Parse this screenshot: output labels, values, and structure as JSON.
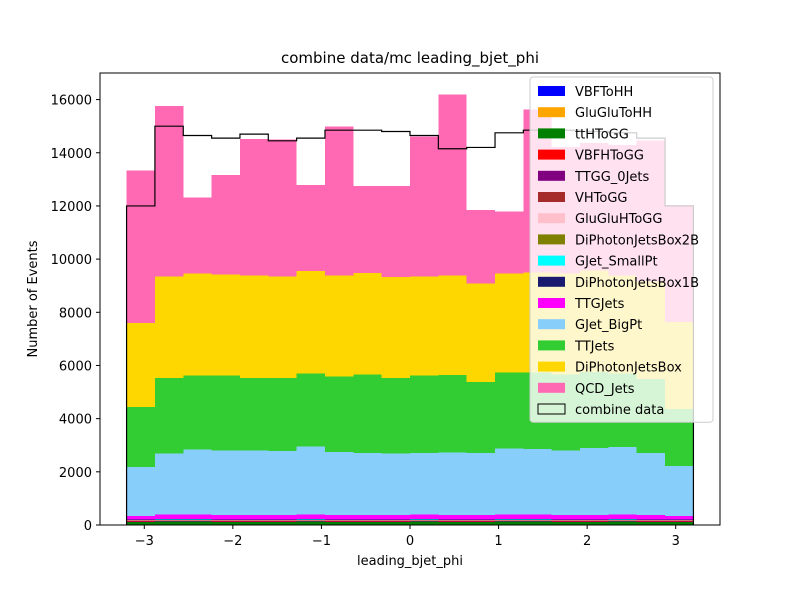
{
  "chart_data": {
    "type": "bar",
    "title": "combine data/mc leading_bjet_phi",
    "xlabel": "leading_bjet_phi",
    "ylabel": "Number of Events",
    "xlim": [
      -3.5,
      3.5
    ],
    "ylim": [
      0,
      17000
    ],
    "xticks": [
      -3,
      -2,
      -1,
      0,
      1,
      2,
      3
    ],
    "xtick_labels": [
      "−3",
      "−2",
      "−1",
      "0",
      "1",
      "2",
      "3"
    ],
    "yticks": [
      0,
      2000,
      4000,
      6000,
      8000,
      10000,
      12000,
      14000,
      16000
    ],
    "ytick_labels": [
      "0",
      "2000",
      "4000",
      "6000",
      "8000",
      "10000",
      "12000",
      "14000",
      "16000"
    ],
    "bin_edges": [
      -3.2,
      -2.88,
      -2.56,
      -2.24,
      -1.92,
      -1.6,
      -1.28,
      -0.96,
      -0.64,
      -0.32,
      0.0,
      0.32,
      0.64,
      0.96,
      1.28,
      1.6,
      1.92,
      2.24,
      2.56,
      2.88,
      3.2
    ],
    "legend_position": "top-right",
    "stacked": true,
    "series": [
      {
        "name": "VBFToHH",
        "color": "#0000ff",
        "values": [
          0,
          0,
          0,
          0,
          0,
          0,
          0,
          0,
          0,
          0,
          0,
          0,
          0,
          0,
          0,
          0,
          0,
          0,
          0,
          0
        ]
      },
      {
        "name": "GluGluToHH",
        "color": "#ffa500",
        "values": [
          0,
          0,
          0,
          0,
          0,
          0,
          0,
          0,
          0,
          0,
          0,
          0,
          0,
          0,
          0,
          0,
          0,
          0,
          0,
          0
        ]
      },
      {
        "name": "ttHToGG",
        "color": "#008000",
        "values": [
          120,
          125,
          125,
          120,
          120,
          120,
          125,
          120,
          120,
          120,
          125,
          120,
          120,
          125,
          125,
          120,
          120,
          125,
          120,
          120
        ]
      },
      {
        "name": "VBFHToGG",
        "color": "#ff0000",
        "values": [
          10,
          10,
          10,
          10,
          10,
          10,
          10,
          10,
          10,
          10,
          10,
          10,
          10,
          10,
          10,
          10,
          10,
          10,
          10,
          10
        ]
      },
      {
        "name": "TTGG_0Jets",
        "color": "#800080",
        "values": [
          20,
          20,
          20,
          20,
          20,
          20,
          20,
          20,
          20,
          20,
          20,
          20,
          20,
          20,
          20,
          20,
          20,
          20,
          20,
          20
        ]
      },
      {
        "name": "VHToGG",
        "color": "#a52a2a",
        "values": [
          10,
          10,
          10,
          10,
          10,
          10,
          10,
          10,
          10,
          10,
          10,
          10,
          10,
          10,
          10,
          10,
          10,
          10,
          10,
          10
        ]
      },
      {
        "name": "GluGluHToGG",
        "color": "#ffc0cb",
        "values": [
          20,
          20,
          20,
          20,
          20,
          20,
          20,
          20,
          20,
          20,
          20,
          20,
          20,
          20,
          20,
          20,
          20,
          20,
          20,
          20
        ]
      },
      {
        "name": "DiPhotonJetsBox2B",
        "color": "#808000",
        "values": [
          10,
          10,
          10,
          10,
          10,
          10,
          10,
          10,
          10,
          10,
          10,
          10,
          10,
          10,
          10,
          10,
          10,
          10,
          10,
          10
        ]
      },
      {
        "name": "GJet_SmallPt",
        "color": "#00ffff",
        "values": [
          5,
          5,
          5,
          5,
          5,
          5,
          5,
          5,
          5,
          5,
          5,
          5,
          5,
          5,
          5,
          5,
          5,
          5,
          5,
          5
        ]
      },
      {
        "name": "DiPhotonJetsBox1B",
        "color": "#191970",
        "values": [
          20,
          20,
          20,
          20,
          20,
          20,
          20,
          20,
          20,
          20,
          20,
          20,
          20,
          20,
          20,
          20,
          20,
          20,
          20,
          20
        ]
      },
      {
        "name": "TTGJets",
        "color": "#ff00ff",
        "values": [
          120,
          170,
          170,
          170,
          170,
          170,
          180,
          170,
          170,
          170,
          170,
          170,
          170,
          170,
          170,
          170,
          170,
          170,
          170,
          120
        ]
      },
      {
        "name": "GJet_BigPt",
        "color": "#87cefa",
        "values": [
          1845,
          2290,
          2450,
          2425,
          2415,
          2395,
          2560,
          2355,
          2315,
          2305,
          2310,
          2340,
          2315,
          2490,
          2470,
          2420,
          2510,
          2540,
          2315,
          1875
        ]
      },
      {
        "name": "TTJets",
        "color": "#32cd32",
        "values": [
          2260,
          2850,
          2790,
          2810,
          2730,
          2750,
          2740,
          2840,
          2960,
          2830,
          2920,
          2920,
          2680,
          2860,
          2880,
          2860,
          2860,
          2760,
          2790,
          2150
        ]
      },
      {
        "name": "DiPhotonJetsBox",
        "color": "#ffd700",
        "values": [
          3150,
          3820,
          3830,
          3810,
          3850,
          3810,
          3860,
          3810,
          3810,
          3810,
          3730,
          3730,
          3700,
          3720,
          3750,
          3800,
          3820,
          3700,
          3670,
          3280
        ]
      },
      {
        "name": "QCD_Jets",
        "color": "#ff69b4",
        "values": [
          5740,
          6410,
          2850,
          3730,
          5130,
          5150,
          3220,
          5600,
          3280,
          3420,
          5270,
          6820,
          2770,
          2340,
          6140,
          4750,
          4800,
          4900,
          5300,
          4400
        ]
      }
    ],
    "data_series": {
      "name": "combine data",
      "color": "#000000",
      "values": [
        12000,
        15000,
        14650,
        14550,
        14700,
        14450,
        14550,
        14850,
        14850,
        14800,
        14650,
        14150,
        14200,
        14750,
        14850,
        14850,
        14800,
        14750,
        14550,
        12000
      ]
    }
  }
}
